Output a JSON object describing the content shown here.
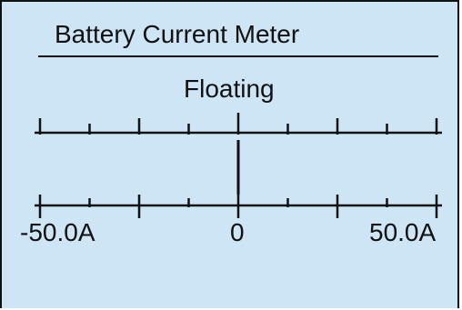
{
  "meter": {
    "title": "Battery Current Meter",
    "status": "Floating",
    "scale": {
      "min_label": "-50.0A",
      "zero_label": "0",
      "max_label": "50.0A",
      "min_value": -50.0,
      "max_value": 50.0,
      "unit": "A"
    },
    "reading": {
      "value": 0.0
    }
  },
  "colors": {
    "background": "#cde5f4",
    "foreground": "#111111"
  }
}
